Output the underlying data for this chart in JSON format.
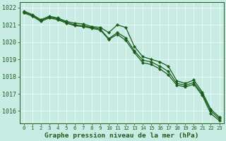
{
  "title": "Graphe pression niveau de la mer (hPa)",
  "xlabel_hours": [
    0,
    1,
    2,
    3,
    4,
    5,
    6,
    7,
    8,
    9,
    10,
    11,
    12,
    13,
    14,
    15,
    16,
    17,
    18,
    19,
    20,
    21,
    22,
    23
  ],
  "ylim": [
    1015.3,
    1022.3
  ],
  "yticks": [
    1016,
    1017,
    1018,
    1019,
    1020,
    1021,
    1022
  ],
  "background_color": "#c8ece4",
  "grid_color": "#e8f8f4",
  "line_color": "#1a5c1a",
  "line1": [
    1021.8,
    1021.6,
    1021.3,
    1021.5,
    1021.4,
    1021.2,
    1021.1,
    1021.05,
    1020.9,
    1020.85,
    1020.55,
    1021.0,
    1020.85,
    1019.75,
    1019.15,
    1019.0,
    1018.85,
    1018.6,
    1017.75,
    1017.6,
    1017.8,
    1017.1,
    1016.1,
    1015.65
  ],
  "line2": [
    1021.75,
    1021.55,
    1021.25,
    1021.45,
    1021.35,
    1021.15,
    1021.0,
    1020.95,
    1020.85,
    1020.75,
    1020.2,
    1020.55,
    1020.25,
    1019.5,
    1018.95,
    1018.85,
    1018.6,
    1018.3,
    1017.6,
    1017.5,
    1017.65,
    1017.0,
    1016.0,
    1015.55
  ],
  "line3": [
    1021.7,
    1021.5,
    1021.2,
    1021.4,
    1021.3,
    1021.1,
    1020.95,
    1020.9,
    1020.8,
    1020.7,
    1020.15,
    1020.45,
    1020.1,
    1019.4,
    1018.8,
    1018.7,
    1018.45,
    1018.1,
    1017.5,
    1017.4,
    1017.55,
    1016.9,
    1015.85,
    1015.45
  ]
}
